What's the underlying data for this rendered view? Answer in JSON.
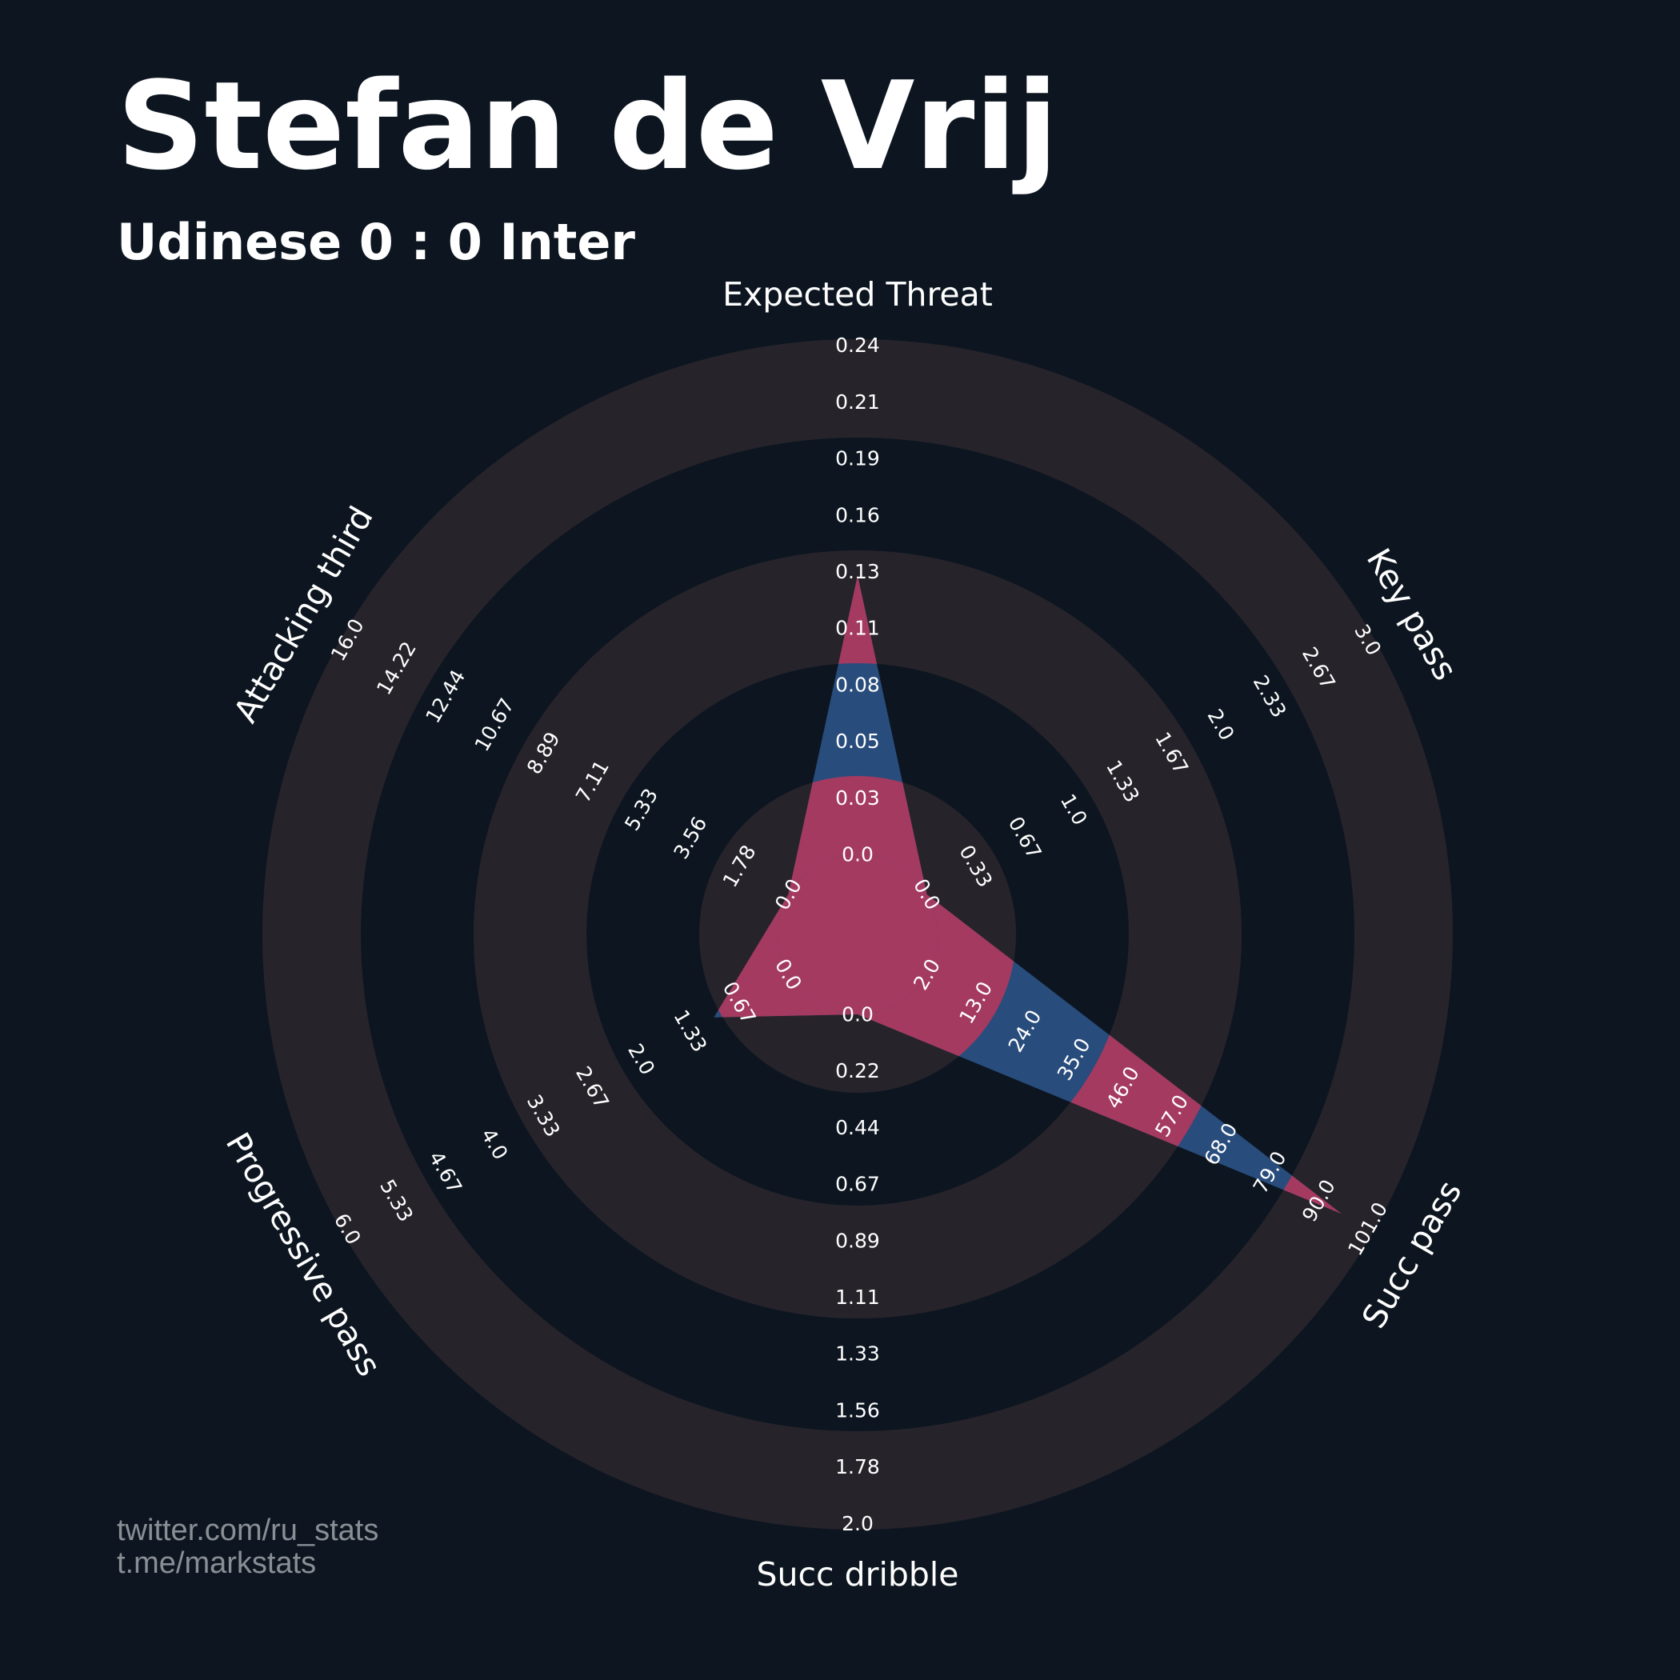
{
  "header": {
    "title": "Stefan de Vrij",
    "subtitle": "Udinese 0 : 0 Inter"
  },
  "credits": {
    "line1": "twitter.com/ru_stats",
    "line2": "t.me/markstats"
  },
  "colors": {
    "background": "#0d1620",
    "ring": "#27232b",
    "blue": "#284c7c",
    "pink": "#a43a60",
    "text": "#ffffff",
    "credits": "#8a8f96"
  },
  "chart_data": {
    "type": "radar",
    "title": "Stefan de Vrij",
    "subtitle": "Udinese 0 : 0 Inter",
    "params": [
      {
        "name": "Expected Threat",
        "min": 0.0,
        "max": 0.24,
        "value": 0.13,
        "ticks": [
          "0.0",
          "0.03",
          "0.05",
          "0.08",
          "0.11",
          "0.13",
          "0.16",
          "0.19",
          "0.21",
          "0.24"
        ]
      },
      {
        "name": "Key pass",
        "min": 0.0,
        "max": 3.0,
        "value": 0.0,
        "ticks": [
          "0.0",
          "0.33",
          "0.67",
          "1.0",
          "1.33",
          "1.67",
          "2.0",
          "2.33",
          "2.67",
          "3.0"
        ]
      },
      {
        "name": "Succ pass",
        "min": 2.0,
        "max": 101.0,
        "value": 94.0,
        "ticks": [
          "2.0",
          "13.0",
          "24.0",
          "35.0",
          "46.0",
          "57.0",
          "68.0",
          "79.0",
          "90.0",
          "101.0"
        ]
      },
      {
        "name": "Succ dribble",
        "min": 0.0,
        "max": 2.0,
        "value": 0.0,
        "ticks": [
          "0.0",
          "0.22",
          "0.44",
          "0.67",
          "0.89",
          "1.11",
          "1.33",
          "1.56",
          "1.78",
          "2.0"
        ]
      },
      {
        "name": "Progressive pass",
        "min": 0.0,
        "max": 6.0,
        "value": 1.0,
        "ticks": [
          "0.0",
          "0.67",
          "1.33",
          "2.0",
          "2.67",
          "3.33",
          "4.0",
          "4.67",
          "5.33",
          "6.0"
        ]
      },
      {
        "name": "Attacking third",
        "min": 0.0,
        "max": 16.0,
        "value": 0.0,
        "ticks": [
          "0.0",
          "1.78",
          "3.56",
          "5.33",
          "7.11",
          "8.89",
          "10.67",
          "12.44",
          "14.22",
          "16.0"
        ]
      }
    ]
  }
}
